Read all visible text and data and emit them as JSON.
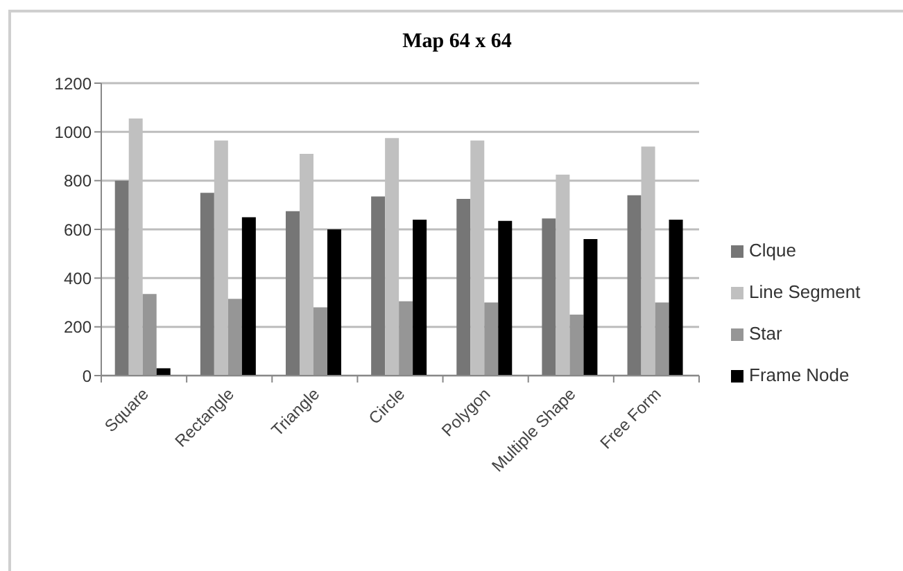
{
  "chart_data": {
    "type": "bar",
    "title": "Map 64 x 64",
    "categories": [
      "Square",
      "Rectangle",
      "Triangle",
      "Circle",
      "Polygon",
      "Multiple Shape",
      "Free Form"
    ],
    "series": [
      {
        "name": "Clque",
        "color": "#767676",
        "values": [
          800,
          750,
          675,
          735,
          725,
          645,
          740
        ]
      },
      {
        "name": "Line Segment",
        "color": "#c0c0c0",
        "values": [
          1055,
          965,
          910,
          975,
          965,
          825,
          940
        ]
      },
      {
        "name": "Star",
        "color": "#969696",
        "values": [
          335,
          315,
          280,
          305,
          300,
          250,
          300
        ]
      },
      {
        "name": "Frame Node",
        "color": "#000000",
        "values": [
          30,
          650,
          600,
          640,
          635,
          560,
          640
        ]
      }
    ],
    "ylim": [
      0,
      1200
    ],
    "yticks": [
      0,
      200,
      400,
      600,
      800,
      1000,
      1200
    ],
    "grid": "y",
    "legend": "right"
  }
}
